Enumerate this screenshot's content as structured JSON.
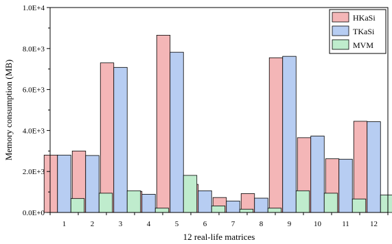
{
  "chart_data": {
    "type": "bar",
    "title": "",
    "xlabel": "12 real-life matrices",
    "ylabel": "Memory consumption (MB)",
    "categories": [
      "1",
      "2",
      "3",
      "4",
      "5",
      "6",
      "7",
      "8",
      "9",
      "10",
      "11",
      "12"
    ],
    "ylim": [
      0,
      10000
    ],
    "yticks": [
      {
        "value": 0,
        "label": "0.0E+0"
      },
      {
        "value": 2000,
        "label": "2.0E+3"
      },
      {
        "value": 4000,
        "label": "4.0E+3"
      },
      {
        "value": 6000,
        "label": "6.0E+3"
      },
      {
        "value": 8000,
        "label": "8.0E+3"
      },
      {
        "value": 10000,
        "label": "1.0E+4"
      }
    ],
    "grid": false,
    "legend_position": "top-right",
    "series": [
      {
        "name": "HKaSi",
        "color": "#f4b6b7",
        "values": [
          2800,
          3000,
          7300,
          1030,
          8650,
          1370,
          730,
          920,
          7550,
          3650,
          2620,
          4450
        ]
      },
      {
        "name": "TKaSi",
        "color": "#b7cdf2",
        "values": [
          2800,
          2780,
          7080,
          890,
          7820,
          1060,
          560,
          700,
          7620,
          3730,
          2600,
          4430
        ]
      },
      {
        "name": "MVM",
        "color": "#bfeccd",
        "values": [
          680,
          940,
          1060,
          210,
          1810,
          320,
          160,
          210,
          1060,
          940,
          660,
          850
        ]
      }
    ]
  }
}
